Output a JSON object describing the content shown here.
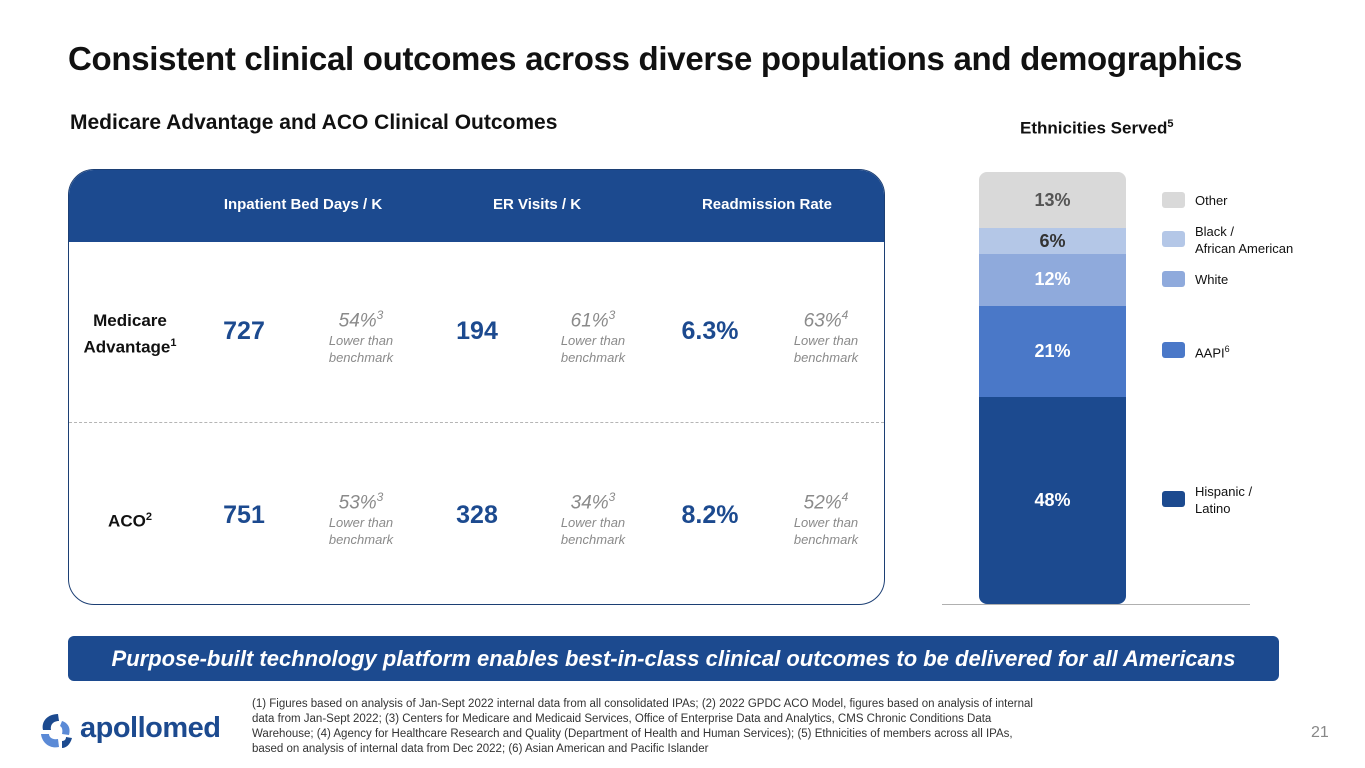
{
  "title": "Consistent clinical outcomes across diverse populations and demographics",
  "subtitle": "Medicare Advantage and ACO Clinical Outcomes",
  "table": {
    "columns": [
      "Inpatient Bed Days / K",
      "ER Visits / K",
      "Readmission Rate"
    ],
    "rows": [
      {
        "label": "Medicare Advantage",
        "label_line1": "Medicare",
        "label_line2": "Advantage",
        "label_sup": "1",
        "values": [
          "727",
          "194",
          "6.3%"
        ],
        "comparisons": [
          {
            "pct": "54%",
            "sup": "3",
            "note_line1": "Lower than",
            "note_line2": "benchmark"
          },
          {
            "pct": "61%",
            "sup": "3",
            "note_line1": "Lower than",
            "note_line2": "benchmark"
          },
          {
            "pct": "63%",
            "sup": "4",
            "note_line1": "Lower than",
            "note_line2": "benchmark"
          }
        ]
      },
      {
        "label": "ACO",
        "label_line1": "ACO",
        "label_sup": "2",
        "values": [
          "751",
          "328",
          "8.2%"
        ],
        "comparisons": [
          {
            "pct": "53%",
            "sup": "3",
            "note_line1": "Lower than",
            "note_line2": "benchmark"
          },
          {
            "pct": "34%",
            "sup": "3",
            "note_line1": "Lower than",
            "note_line2": "benchmark"
          },
          {
            "pct": "52%",
            "sup": "4",
            "note_line1": "Lower than",
            "note_line2": "benchmark"
          }
        ]
      }
    ]
  },
  "ethnicities": {
    "title": "Ethnicities Served",
    "title_sup": "5",
    "segments": [
      {
        "label": "13%",
        "value": 13,
        "color": "#d9d9d9",
        "text_color": "#555555"
      },
      {
        "label": "6%",
        "value": 6,
        "color": "#b4c7e7",
        "text_color": "#333333"
      },
      {
        "label": "12%",
        "value": 12,
        "color": "#8faadc",
        "text_color": "#ffffff"
      },
      {
        "label": "21%",
        "value": 21,
        "color": "#4a78c8",
        "text_color": "#ffffff"
      },
      {
        "label": "48%",
        "value": 48,
        "color": "#1c4a8f",
        "text_color": "#ffffff"
      }
    ],
    "legend": [
      {
        "line1": "Other",
        "line2": "",
        "color": "#d9d9d9"
      },
      {
        "line1": "Black /",
        "line2": "African American",
        "color": "#b4c7e7"
      },
      {
        "line1": "White",
        "line2": "",
        "color": "#8faadc"
      },
      {
        "line1": "AAPI",
        "sup": "6",
        "line2": "",
        "color": "#4a78c8"
      },
      {
        "line1": "Hispanic /",
        "line2": "Latino",
        "color": "#1c4a8f"
      }
    ]
  },
  "banner": "Purpose-built technology platform enables best-in-class clinical outcomes to be delivered for all Americans",
  "logo": "apollomed",
  "footnote": "(1) Figures based on analysis of Jan-Sept 2022 internal data from all consolidated IPAs;  (2) 2022 GPDC ACO Model, figures based on analysis of internal data from Jan-Sept 2022; (3) Centers for Medicare and Medicaid Services, Office of Enterprise Data and Analytics, CMS Chronic Conditions Data Warehouse; (4) Agency for Healthcare Research and Quality (Department of Health and Human Services); (5) Ethnicities of members across all IPAs, based on analysis of internal data from Dec 2022; (6) Asian American and Pacific Islander",
  "page_number": "21"
}
